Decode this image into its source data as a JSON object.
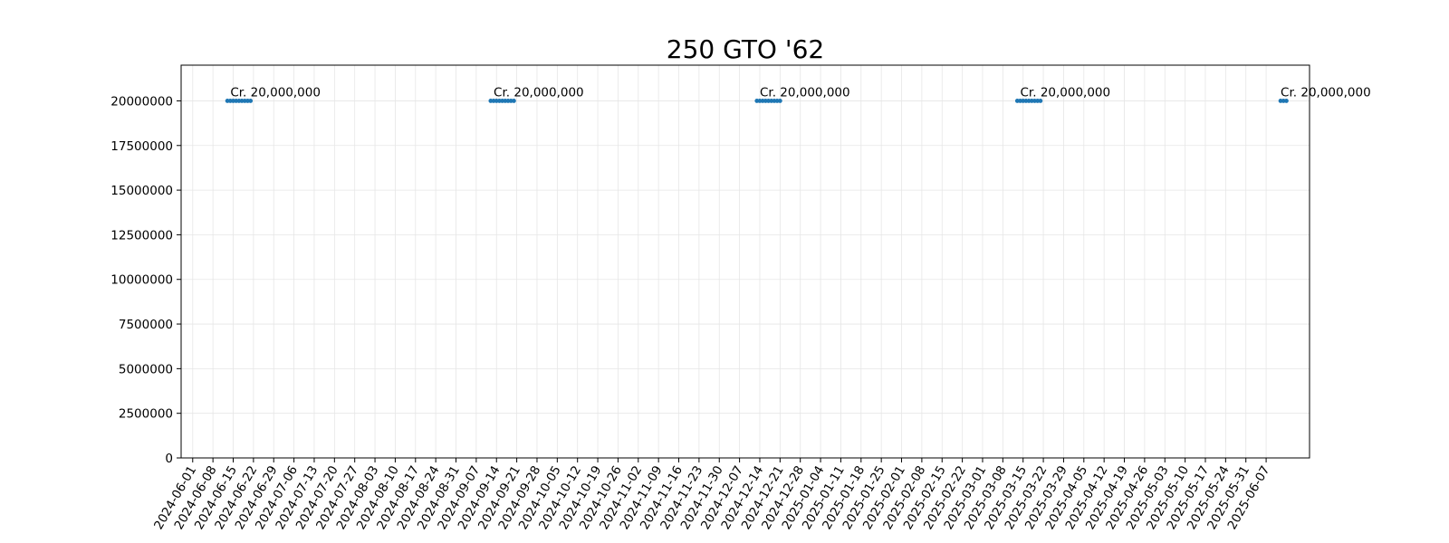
{
  "chart_data": {
    "type": "line",
    "title": "250 GTO '62",
    "xlabel": "",
    "ylabel": "",
    "ylim": [
      0,
      22000000
    ],
    "xlim": [
      "2024-05-28",
      "2025-06-22"
    ],
    "grid": true,
    "series_color": "#1f77b4",
    "y_ticks": [
      0,
      2500000,
      5000000,
      7500000,
      10000000,
      12500000,
      15000000,
      17500000,
      20000000
    ],
    "x_ticks": [
      "2024-06-01",
      "2024-06-08",
      "2024-06-15",
      "2024-06-22",
      "2024-06-29",
      "2024-07-06",
      "2024-07-13",
      "2024-07-20",
      "2024-07-27",
      "2024-08-03",
      "2024-08-10",
      "2024-08-17",
      "2024-08-24",
      "2024-08-31",
      "2024-09-07",
      "2024-09-14",
      "2024-09-21",
      "2024-09-28",
      "2024-10-05",
      "2024-10-12",
      "2024-10-19",
      "2024-10-26",
      "2024-11-02",
      "2024-11-09",
      "2024-11-16",
      "2024-11-23",
      "2024-11-30",
      "2024-12-07",
      "2024-12-14",
      "2024-12-21",
      "2024-12-28",
      "2025-01-04",
      "2025-01-11",
      "2025-01-18",
      "2025-01-25",
      "2025-02-01",
      "2025-02-08",
      "2025-02-15",
      "2025-02-22",
      "2025-03-01",
      "2025-03-08",
      "2025-03-15",
      "2025-03-22",
      "2025-03-29",
      "2025-04-05",
      "2025-04-12",
      "2025-04-19",
      "2025-04-26",
      "2025-05-03",
      "2025-05-10",
      "2025-05-17",
      "2025-05-24",
      "2025-05-31",
      "2025-06-07"
    ],
    "series": [
      {
        "segments": [
          {
            "x": [
              "2024-06-13",
              "2024-06-14",
              "2024-06-15",
              "2024-06-16",
              "2024-06-17",
              "2024-06-18",
              "2024-06-19",
              "2024-06-20",
              "2024-06-21"
            ],
            "y": 20000000
          },
          {
            "x": [
              "2024-09-12",
              "2024-09-13",
              "2024-09-14",
              "2024-09-15",
              "2024-09-16",
              "2024-09-17",
              "2024-09-18",
              "2024-09-19",
              "2024-09-20"
            ],
            "y": 20000000
          },
          {
            "x": [
              "2024-12-13",
              "2024-12-14",
              "2024-12-15",
              "2024-12-16",
              "2024-12-17",
              "2024-12-18",
              "2024-12-19",
              "2024-12-20",
              "2024-12-21"
            ],
            "y": 20000000
          },
          {
            "x": [
              "2025-03-13",
              "2025-03-14",
              "2025-03-15",
              "2025-03-16",
              "2025-03-17",
              "2025-03-18",
              "2025-03-19",
              "2025-03-20",
              "2025-03-21"
            ],
            "y": 20000000
          },
          {
            "x": [
              "2025-06-12",
              "2025-06-13",
              "2025-06-14"
            ],
            "y": 20000000
          }
        ]
      }
    ],
    "annotations": [
      {
        "x": "2024-06-14",
        "y": 20000000,
        "text": "Cr. 20,000,000"
      },
      {
        "x": "2024-09-13",
        "y": 20000000,
        "text": "Cr. 20,000,000"
      },
      {
        "x": "2024-12-14",
        "y": 20000000,
        "text": "Cr. 20,000,000"
      },
      {
        "x": "2025-03-14",
        "y": 20000000,
        "text": "Cr. 20,000,000"
      },
      {
        "x": "2025-06-12",
        "y": 20000000,
        "text": "Cr. 20,000,000"
      }
    ]
  }
}
